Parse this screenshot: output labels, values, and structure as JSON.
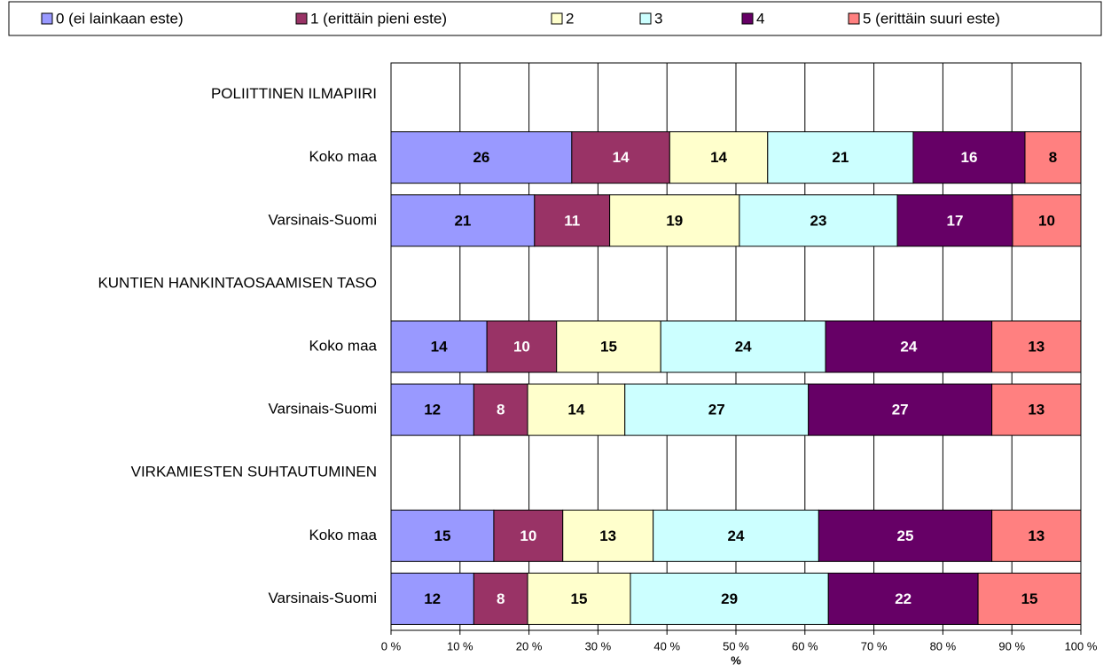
{
  "chart_data": {
    "type": "stacked_bar_horizontal",
    "categories": [
      "POLIITTINEN ILMAPIIRI",
      "Koko maa",
      "Varsinais-Suomi",
      "KUNTIEN HANKINTAOSAAMISEN TASO",
      "Koko maa",
      "Varsinais-Suomi",
      "VIRKAMIESTEN SUHTAUTUMINEN",
      "Koko maa",
      "Varsinais-Suomi"
    ],
    "series": [
      {
        "name": "0 (ei lainkaan este)",
        "color": "#9999ff",
        "values": [
          null,
          26.2,
          20.8,
          null,
          13.9,
          12.0,
          null,
          14.9,
          12.0
        ],
        "value_labels": [
          null,
          "26",
          "21",
          null,
          "14",
          "12",
          null,
          "15",
          "12"
        ]
      },
      {
        "name": "1 (erittäin pieni este)",
        "color": "#993366",
        "values": [
          null,
          14.2,
          10.9,
          null,
          10.1,
          7.8,
          null,
          10.0,
          7.8
        ],
        "value_labels": [
          null,
          "14",
          "11",
          null,
          "10",
          "8",
          null,
          "10",
          "8"
        ]
      },
      {
        "name": "2",
        "color": "#ffffcc",
        "values": [
          null,
          14.2,
          18.8,
          null,
          15.1,
          14.1,
          null,
          13.1,
          14.9
        ],
        "value_labels": [
          null,
          "14",
          "19",
          null,
          "15",
          "14",
          null,
          "13",
          "15"
        ]
      },
      {
        "name": "3",
        "color": "#ccffff",
        "values": [
          null,
          21.1,
          22.9,
          null,
          23.9,
          26.6,
          null,
          24.0,
          28.7
        ],
        "value_labels": [
          null,
          "21",
          "23",
          null,
          "24",
          "27",
          null,
          "24",
          "29"
        ]
      },
      {
        "name": "4",
        "color": "#660066",
        "values": [
          null,
          16.2,
          16.7,
          null,
          24.1,
          26.6,
          null,
          25.1,
          21.7
        ],
        "value_labels": [
          null,
          "16",
          "17",
          null,
          "24",
          "27",
          null,
          "25",
          "22"
        ]
      },
      {
        "name": "5 (erittäin suuri este)",
        "color": "#ff8080",
        "values": [
          null,
          8.1,
          9.9,
          null,
          12.9,
          12.9,
          null,
          12.9,
          14.9
        ],
        "value_labels": [
          null,
          "8",
          "10",
          null,
          "13",
          "13",
          null,
          "13",
          "15"
        ]
      }
    ],
    "x_label": "%",
    "xlim": [
      0,
      100
    ],
    "xticks": [
      {
        "value": 0,
        "label": "0 %"
      },
      {
        "value": 10,
        "label": "10 %"
      },
      {
        "value": 20,
        "label": "20 %"
      },
      {
        "value": 30,
        "label": "30 %"
      },
      {
        "value": 40,
        "label": "40 %"
      },
      {
        "value": 50,
        "label": "50 %"
      },
      {
        "value": 60,
        "label": "60 %"
      },
      {
        "value": 70,
        "label": "70 %"
      },
      {
        "value": 80,
        "label": "80 %"
      },
      {
        "value": 90,
        "label": "90 %"
      },
      {
        "value": 100,
        "label": "100 %"
      }
    ],
    "grid": true,
    "legend": "top"
  }
}
